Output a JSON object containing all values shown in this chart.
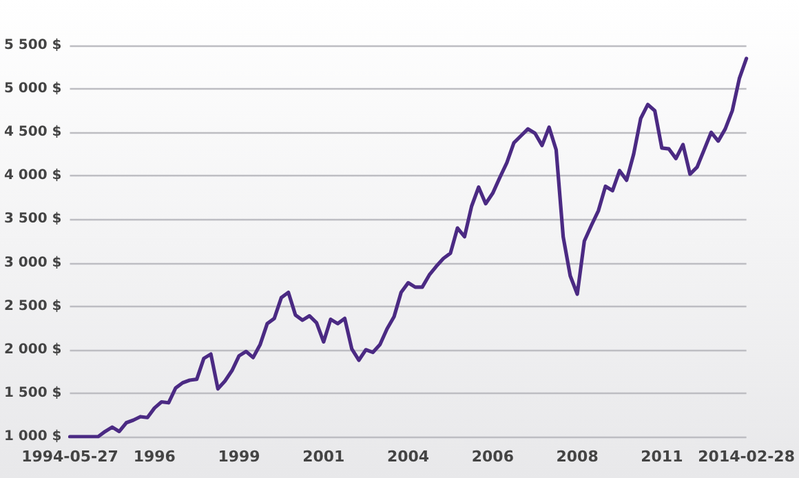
{
  "chart_data": {
    "type": "line",
    "categories": [
      "1994-05-27",
      null,
      null,
      null,
      null,
      null,
      null,
      null,
      null,
      null,
      null,
      null,
      "1996",
      null,
      null,
      null,
      null,
      null,
      null,
      null,
      null,
      null,
      null,
      null,
      "1999",
      null,
      null,
      null,
      null,
      null,
      null,
      null,
      null,
      null,
      null,
      null,
      "2001",
      null,
      null,
      null,
      null,
      null,
      null,
      null,
      null,
      null,
      null,
      null,
      "2004",
      null,
      null,
      null,
      null,
      null,
      null,
      null,
      null,
      null,
      null,
      null,
      "2006",
      null,
      null,
      null,
      null,
      null,
      null,
      null,
      null,
      null,
      null,
      null,
      "2008",
      null,
      null,
      null,
      null,
      null,
      null,
      null,
      null,
      null,
      null,
      null,
      "2011",
      null,
      null,
      null,
      null,
      null,
      null,
      null,
      null,
      null,
      null,
      null,
      "2014-02-28"
    ],
    "series": [
      {
        "color": "#4b2a83",
        "values": [
          1000,
          1000,
          1000,
          1000,
          1000,
          1060,
          1110,
          1060,
          1160,
          1190,
          1230,
          1220,
          1330,
          1400,
          1390,
          1560,
          1620,
          1650,
          1660,
          1900,
          1950,
          1550,
          1640,
          1760,
          1930,
          1980,
          1910,
          2060,
          2300,
          2360,
          2600,
          2660,
          2400,
          2340,
          2390,
          2310,
          2090,
          2350,
          2300,
          2360,
          2010,
          1880,
          2000,
          1970,
          2060,
          2240,
          2380,
          2660,
          2770,
          2720,
          2720,
          2860,
          2960,
          3050,
          3110,
          3400,
          3300,
          3650,
          3870,
          3680,
          3800,
          3980,
          4150,
          4380,
          4460,
          4540,
          4490,
          4350,
          4560,
          4300,
          3300,
          2850,
          2640,
          3250,
          3430,
          3600,
          3880,
          3830,
          4060,
          3950,
          4250,
          4660,
          4820,
          4750,
          4320,
          4310,
          4200,
          4360,
          4020,
          4100,
          4300,
          4500,
          4400,
          4540,
          4750,
          5120,
          5350
        ]
      }
    ],
    "ylim": [
      1000,
      5500
    ],
    "yticks": [
      {
        "value": 1000,
        "label": "1 000 $"
      },
      {
        "value": 1500,
        "label": "1 500 $"
      },
      {
        "value": 2000,
        "label": "2 000 $"
      },
      {
        "value": 2500,
        "label": "2 500 $"
      },
      {
        "value": 3000,
        "label": "3 000 $"
      },
      {
        "value": 3500,
        "label": "3 500 $"
      },
      {
        "value": 4000,
        "label": "4 000 $"
      },
      {
        "value": 4500,
        "label": "4 500 $"
      },
      {
        "value": 5000,
        "label": "5 000 $"
      },
      {
        "value": 5500,
        "label": "5 500 $"
      }
    ],
    "grid": "y",
    "marker": "none",
    "line_style": "solid"
  }
}
